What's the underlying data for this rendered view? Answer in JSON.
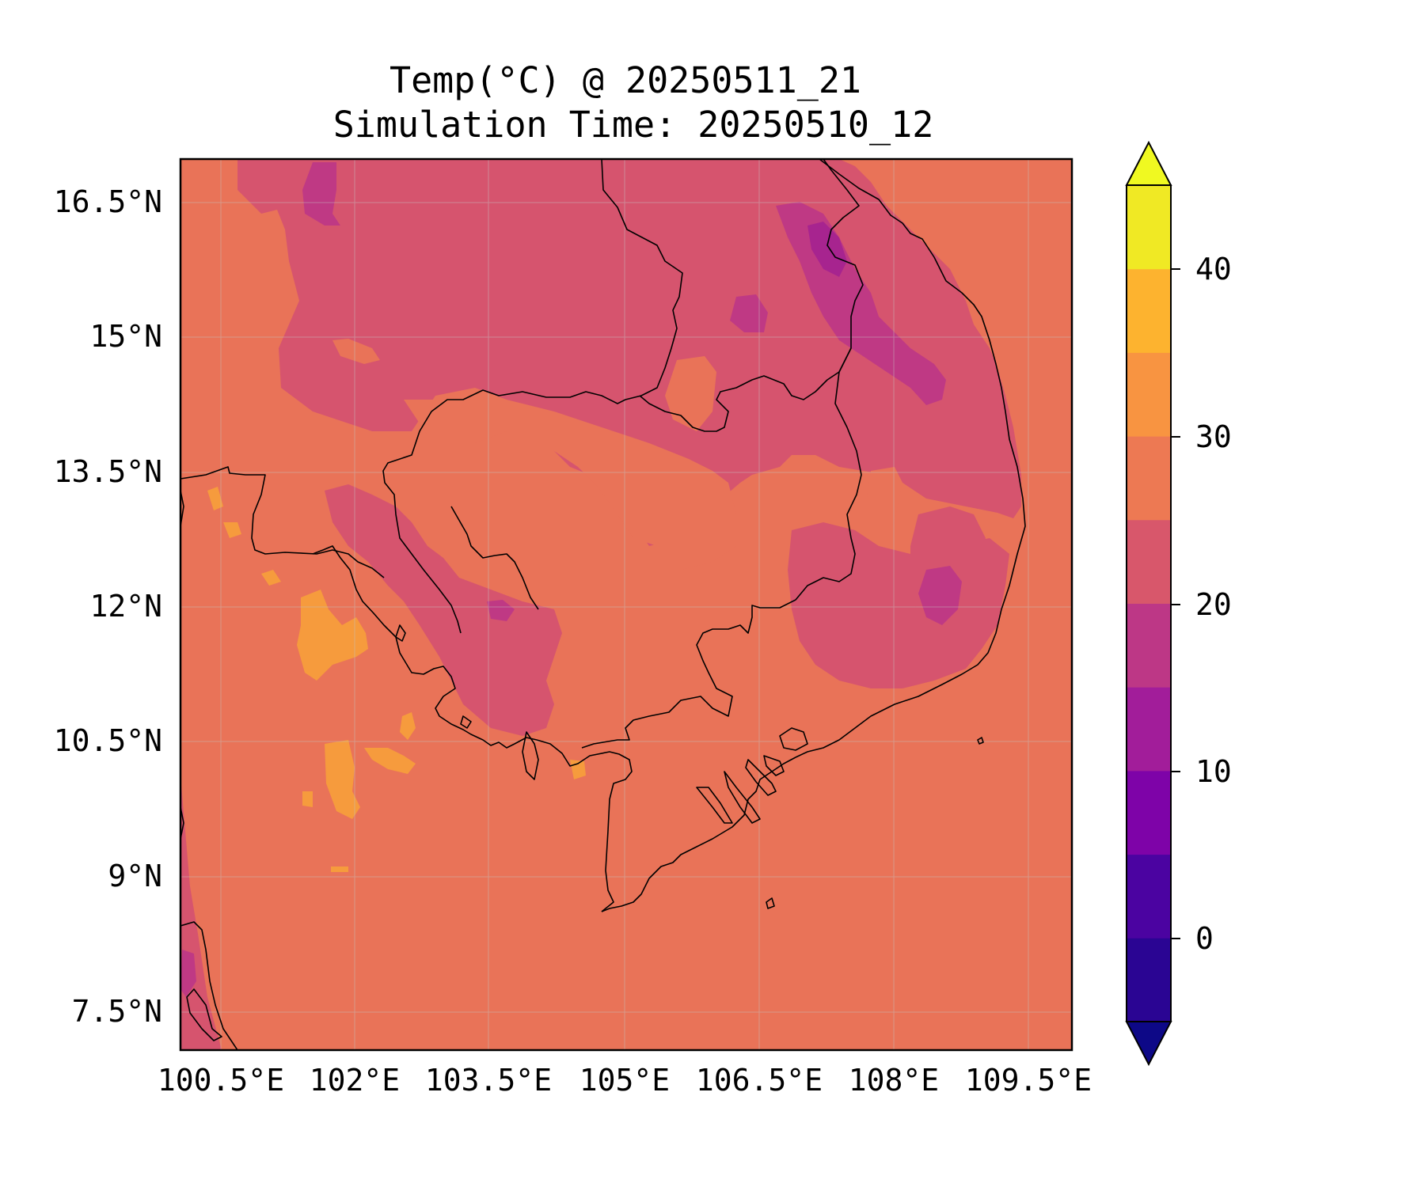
{
  "title": "Temp(°C) @ 20250511_21",
  "subtitle": "Simulation Time: 20250510_12",
  "map": {
    "lon_ticks": [
      "100.5°E",
      "102°E",
      "103.5°E",
      "105°E",
      "106.5°E",
      "108°E",
      "109.5°E"
    ],
    "lat_ticks": [
      "16.5°N",
      "15°N",
      "13.5°N",
      "12°N",
      "10.5°N",
      "9°N",
      "7.5°N"
    ],
    "gridlines": true,
    "coastlines": true,
    "borders": true
  },
  "colorbar": {
    "ticks": [
      "40",
      "30",
      "20",
      "10",
      "0"
    ],
    "levels": [
      -5,
      0,
      5,
      10,
      15,
      20,
      25,
      30,
      35,
      40,
      45
    ],
    "extend": "both",
    "colormap": "plasma",
    "colors": [
      "#0d0887",
      "#2a0593",
      "#4b03a1",
      "#7e03a8",
      "#a21d9a",
      "#bd3786",
      "#d8576b",
      "#ed7953",
      "#f89441",
      "#fdb32f",
      "#f0e924",
      "#f0f921"
    ]
  },
  "fill_colors": {
    "warm": "#e97358",
    "mild": "#d6546e",
    "cool": "#bf3984",
    "cold": "#a7248f",
    "hot": "#f69b3d"
  }
}
